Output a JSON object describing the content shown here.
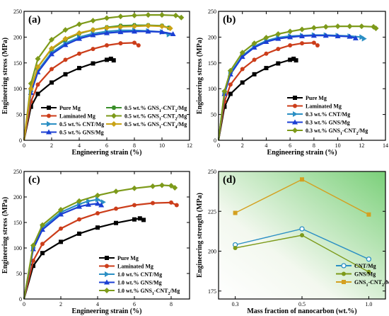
{
  "chart_data": [
    {
      "panel": "(a)",
      "type": "line",
      "xlabel": "Engineering strain (%)",
      "ylabel": "Engineering stress (MPa)",
      "xlim": [
        0,
        12
      ],
      "ylim": [
        0,
        250
      ],
      "xticks": [
        "0",
        "2",
        "4",
        "6",
        "8",
        "10",
        "12"
      ],
      "yticks": [
        "0",
        "50",
        "100",
        "150",
        "200",
        "250"
      ],
      "legend": [
        "Pure Mg",
        "Laminated Mg",
        "0.5 wt.% CNT/Mg",
        "0.5 wt.% GNS/Mg",
        "0.5 wt.% GNS₁-CNT₁/Mg",
        "0.5 wt.% GNS₁-CNT₂/Mg",
        "0.5 wt.% GNS₁-CNT₄/Mg"
      ],
      "series": [
        {
          "name": "Pure Mg",
          "color": "#000000",
          "marker": "square",
          "points": [
            [
              0,
              0
            ],
            [
              0.5,
              65
            ],
            [
              1,
              90
            ],
            [
              2,
              112
            ],
            [
              3,
              128
            ],
            [
              4,
              140
            ],
            [
              5,
              149
            ],
            [
              6,
              156
            ],
            [
              6.3,
              158
            ],
            [
              6.5,
              155
            ]
          ]
        },
        {
          "name": "Laminated Mg",
          "color": "#cc3d1a",
          "marker": "circle",
          "points": [
            [
              0,
              0
            ],
            [
              0.5,
              75
            ],
            [
              1,
              108
            ],
            [
              2,
              138
            ],
            [
              3,
              156
            ],
            [
              4,
              168
            ],
            [
              5,
              177
            ],
            [
              6,
              184
            ],
            [
              7,
              188
            ],
            [
              8,
              189
            ],
            [
              8.3,
              184
            ]
          ]
        },
        {
          "name": "0.5 wt.% CNT/Mg",
          "color": "#2b8fc4",
          "marker": "tri-right",
          "points": [
            [
              0,
              0
            ],
            [
              0.5,
              95
            ],
            [
              1,
              135
            ],
            [
              2,
              170
            ],
            [
              3,
              188
            ],
            [
              4,
              200
            ],
            [
              5,
              207
            ],
            [
              6,
              211
            ],
            [
              7,
              213
            ],
            [
              8,
              213
            ],
            [
              9,
              212
            ],
            [
              10,
              210
            ],
            [
              10.5,
              205
            ]
          ]
        },
        {
          "name": "0.5 wt.% GNS/Mg",
          "color": "#1b3fd4",
          "marker": "tri-up",
          "points": [
            [
              0,
              0
            ],
            [
              0.5,
              92
            ],
            [
              1,
              132
            ],
            [
              2,
              167
            ],
            [
              3,
              185
            ],
            [
              4,
              197
            ],
            [
              5,
              204
            ],
            [
              6,
              208
            ],
            [
              7,
              210
            ],
            [
              8,
              211
            ],
            [
              9,
              211
            ],
            [
              10,
              210
            ],
            [
              10.8,
              206
            ]
          ]
        },
        {
          "name": "0.5 wt.% GNS₁-CNT₁/Mg",
          "color": "#3a8f2a",
          "marker": "hexagon",
          "points": [
            [
              0,
              0
            ],
            [
              0.5,
              100
            ],
            [
              1,
              142
            ],
            [
              2,
              177
            ],
            [
              3,
              195
            ],
            [
              4,
              207
            ],
            [
              5,
              214
            ],
            [
              6,
              219
            ],
            [
              7,
              222
            ],
            [
              8,
              223
            ],
            [
              9,
              223
            ],
            [
              10,
              222
            ],
            [
              10.5,
              218
            ]
          ]
        },
        {
          "name": "0.5 wt.% GNS₁-CNT₂/Mg",
          "color": "#7d9a1a",
          "marker": "diamond",
          "points": [
            [
              0,
              0
            ],
            [
              0.5,
              110
            ],
            [
              1,
              158
            ],
            [
              2,
              195
            ],
            [
              3,
              214
            ],
            [
              4,
              225
            ],
            [
              5,
              232
            ],
            [
              6,
              237
            ],
            [
              7,
              240
            ],
            [
              8,
              242
            ],
            [
              9,
              243
            ],
            [
              10,
              243
            ],
            [
              11,
              242
            ],
            [
              11.4,
              238
            ]
          ]
        },
        {
          "name": "0.5 wt.% GNS₁-CNT₄/Mg",
          "color": "#c9a316",
          "marker": "diamond",
          "points": [
            [
              0,
              0
            ],
            [
              0.5,
              100
            ],
            [
              1,
              142
            ],
            [
              2,
              178
            ],
            [
              3,
              197
            ],
            [
              4,
              208
            ],
            [
              5,
              214
            ],
            [
              6,
              218
            ],
            [
              7,
              220
            ],
            [
              8,
              221
            ],
            [
              9,
              222
            ],
            [
              10,
              221
            ],
            [
              10.6,
              217
            ]
          ]
        }
      ]
    },
    {
      "panel": "(b)",
      "type": "line",
      "xlabel": "Engineering strain (%)",
      "ylabel": "Engineering stress (MPa)",
      "xlim": [
        0,
        14
      ],
      "ylim": [
        0,
        250
      ],
      "xticks": [
        "0",
        "2",
        "4",
        "6",
        "8",
        "10",
        "12",
        "14"
      ],
      "yticks": [
        "0",
        "50",
        "100",
        "150",
        "200",
        "250"
      ],
      "legend": [
        "Pure Mg",
        "Laminated Mg",
        "0.3 wt.% CNT/Mg",
        "0.3 wt.% GNS/Mg",
        "0.3 wt.% GNS₁-CNT₂/Mg"
      ],
      "series": [
        {
          "name": "Pure Mg",
          "color": "#000000",
          "marker": "square",
          "points": [
            [
              0,
              0
            ],
            [
              0.5,
              65
            ],
            [
              1,
              90
            ],
            [
              2,
              112
            ],
            [
              3,
              128
            ],
            [
              4,
              140
            ],
            [
              5,
              149
            ],
            [
              6,
              156
            ],
            [
              6.3,
              158
            ],
            [
              6.5,
              155
            ]
          ]
        },
        {
          "name": "Laminated Mg",
          "color": "#cc3d1a",
          "marker": "circle",
          "points": [
            [
              0,
              0
            ],
            [
              0.5,
              75
            ],
            [
              1,
              108
            ],
            [
              2,
              138
            ],
            [
              3,
              156
            ],
            [
              4,
              168
            ],
            [
              5,
              177
            ],
            [
              6,
              184
            ],
            [
              7,
              188
            ],
            [
              8,
              189
            ],
            [
              8.3,
              184
            ]
          ]
        },
        {
          "name": "0.3 wt.% CNT/Mg",
          "color": "#2b8fc4",
          "marker": "tri-right",
          "points": [
            [
              0,
              0
            ],
            [
              0.5,
              92
            ],
            [
              1,
              130
            ],
            [
              2,
              164
            ],
            [
              3,
              182
            ],
            [
              4,
              193
            ],
            [
              5,
              199
            ],
            [
              6,
              202
            ],
            [
              7,
              203
            ],
            [
              8,
              204
            ],
            [
              9,
              204
            ],
            [
              10,
              203
            ],
            [
              11,
              202
            ],
            [
              12,
              200
            ],
            [
              12.2,
              197
            ]
          ]
        },
        {
          "name": "0.3 wt.% GNS/Mg",
          "color": "#1b3fd4",
          "marker": "tri-up",
          "points": [
            [
              0,
              0
            ],
            [
              0.5,
              90
            ],
            [
              1,
              128
            ],
            [
              2,
              162
            ],
            [
              3,
              180
            ],
            [
              4,
              191
            ],
            [
              5,
              197
            ],
            [
              6,
              200
            ],
            [
              7,
              202
            ],
            [
              8,
              203
            ],
            [
              9,
              203
            ],
            [
              10,
              202
            ],
            [
              11,
              201
            ],
            [
              11.5,
              198
            ]
          ]
        },
        {
          "name": "0.3 wt.% GNS₁-CNT₂/Mg",
          "color": "#7d9a1a",
          "marker": "diamond",
          "points": [
            [
              0,
              0
            ],
            [
              0.5,
              95
            ],
            [
              1,
              135
            ],
            [
              2,
              170
            ],
            [
              3,
              188
            ],
            [
              4,
              199
            ],
            [
              5,
              206
            ],
            [
              6,
              211
            ],
            [
              7,
              215
            ],
            [
              8,
              218
            ],
            [
              9,
              220
            ],
            [
              10,
              221
            ],
            [
              11,
              221
            ],
            [
              12,
              221
            ],
            [
              13,
              220
            ],
            [
              13.2,
              217
            ]
          ]
        }
      ]
    },
    {
      "panel": "(c)",
      "type": "line",
      "xlabel": "Engineering strain (%)",
      "ylabel": "Engineering stress (MPa)",
      "xlim": [
        0,
        9
      ],
      "ylim": [
        0,
        250
      ],
      "xticks": [
        "0",
        "2",
        "4",
        "6",
        "8"
      ],
      "yticks": [
        "0",
        "50",
        "100",
        "150",
        "200",
        "250"
      ],
      "legend": [
        "Pure Mg",
        "Laminated Mg",
        "1.0 wt.% CNT/Mg",
        "1.0 wt.% GNS/Mg",
        "1.0 wt.% GNS₁-CNT₂/Mg"
      ],
      "series": [
        {
          "name": "Pure Mg",
          "color": "#000000",
          "marker": "square",
          "points": [
            [
              0,
              0
            ],
            [
              0.5,
              65
            ],
            [
              1,
              90
            ],
            [
              2,
              112
            ],
            [
              3,
              128
            ],
            [
              4,
              140
            ],
            [
              5,
              149
            ],
            [
              6,
              156
            ],
            [
              6.3,
              158
            ],
            [
              6.5,
              155
            ]
          ]
        },
        {
          "name": "Laminated Mg",
          "color": "#cc3d1a",
          "marker": "circle",
          "points": [
            [
              0,
              0
            ],
            [
              0.5,
              75
            ],
            [
              1,
              108
            ],
            [
              2,
              138
            ],
            [
              3,
              156
            ],
            [
              4,
              168
            ],
            [
              5,
              177
            ],
            [
              6,
              184
            ],
            [
              7,
              188
            ],
            [
              8,
              189
            ],
            [
              8.3,
              184
            ]
          ]
        },
        {
          "name": "1.0 wt.% CNT/Mg",
          "color": "#2b8fc4",
          "marker": "tri-right",
          "points": [
            [
              0,
              0
            ],
            [
              0.5,
              100
            ],
            [
              1,
              140
            ],
            [
              2,
              170
            ],
            [
              3,
              186
            ],
            [
              3.5,
              192
            ],
            [
              4,
              195
            ],
            [
              4.3,
              190
            ]
          ]
        },
        {
          "name": "1.0 wt.% GNS/Mg",
          "color": "#1b3fd4",
          "marker": "tri-up",
          "points": [
            [
              0,
              0
            ],
            [
              0.5,
              98
            ],
            [
              1,
              136
            ],
            [
              2,
              166
            ],
            [
              3,
              181
            ],
            [
              3.5,
              185
            ],
            [
              4,
              187
            ],
            [
              4.2,
              184
            ]
          ]
        },
        {
          "name": "1.0 wt.% GNS₁-CNT₂/Mg",
          "color": "#7d9a1a",
          "marker": "diamond",
          "points": [
            [
              0,
              0
            ],
            [
              0.5,
              105
            ],
            [
              1,
              145
            ],
            [
              2,
              175
            ],
            [
              3,
              192
            ],
            [
              4,
              203
            ],
            [
              5,
              211
            ],
            [
              6,
              217
            ],
            [
              7,
              221
            ],
            [
              7.5,
              223
            ],
            [
              8,
              222
            ],
            [
              8.2,
              218
            ]
          ]
        }
      ]
    },
    {
      "panel": "(d)",
      "type": "line",
      "xlabel": "Mass fraction of nanocarbon (wt.%)",
      "ylabel": "Engineering strength (MPa)",
      "categories": [
        "0.3",
        "0.5",
        "1.0"
      ],
      "ylim": [
        170,
        250
      ],
      "yticks": [
        "175",
        "200",
        "225",
        "250"
      ],
      "background": "green-gradient",
      "legend": [
        "CNT/Mg",
        "GNS/Mg",
        "GNS₁-CNT₂/Mg"
      ],
      "series": [
        {
          "name": "CNT/Mg",
          "color": "#2b8fc4",
          "marker": "circle-open",
          "values": [
            204,
            214,
            195
          ]
        },
        {
          "name": "GNS/Mg",
          "color": "#7d9a1a",
          "marker": "circle",
          "values": [
            202,
            210,
            187
          ]
        },
        {
          "name": "GNS₁-CNT₂/Mg",
          "color": "#d4a020",
          "marker": "square",
          "values": [
            224,
            245,
            223
          ]
        }
      ]
    }
  ]
}
